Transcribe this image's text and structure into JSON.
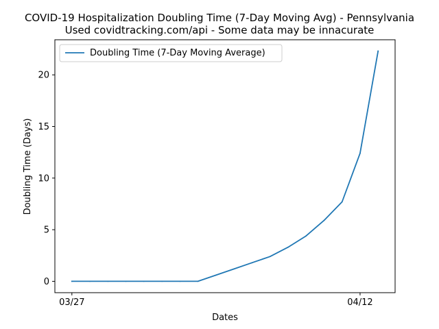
{
  "chart_data": {
    "type": "line",
    "title": "COVID-19 Hospitalization Doubling Time (7-Day Moving Avg) - Pennsylvania",
    "subtitle": "Used covidtracking.com/api - Some data may be innacurate",
    "xlabel": "Dates",
    "ylabel": "Doubling Time (Days)",
    "x": [
      "03/27",
      "03/28",
      "03/29",
      "03/30",
      "03/31",
      "04/01",
      "04/02",
      "04/03",
      "04/04",
      "04/05",
      "04/06",
      "04/07",
      "04/08",
      "04/09",
      "04/10",
      "04/11",
      "04/12",
      "04/13"
    ],
    "xticks": [
      "03/27",
      "04/12"
    ],
    "yticks": [
      0,
      5,
      10,
      15,
      20
    ],
    "ylim": [
      -1.1,
      23.4
    ],
    "series": [
      {
        "name": "Doubling Time (7-Day Moving Average)",
        "color": "#1f77b4",
        "values": [
          0,
          0,
          0,
          0,
          0,
          0,
          0,
          0,
          0.6,
          1.2,
          1.8,
          2.4,
          3.3,
          4.4,
          5.9,
          7.7,
          12.4,
          22.3
        ]
      }
    ],
    "legend": "top-left",
    "grid": false
  }
}
